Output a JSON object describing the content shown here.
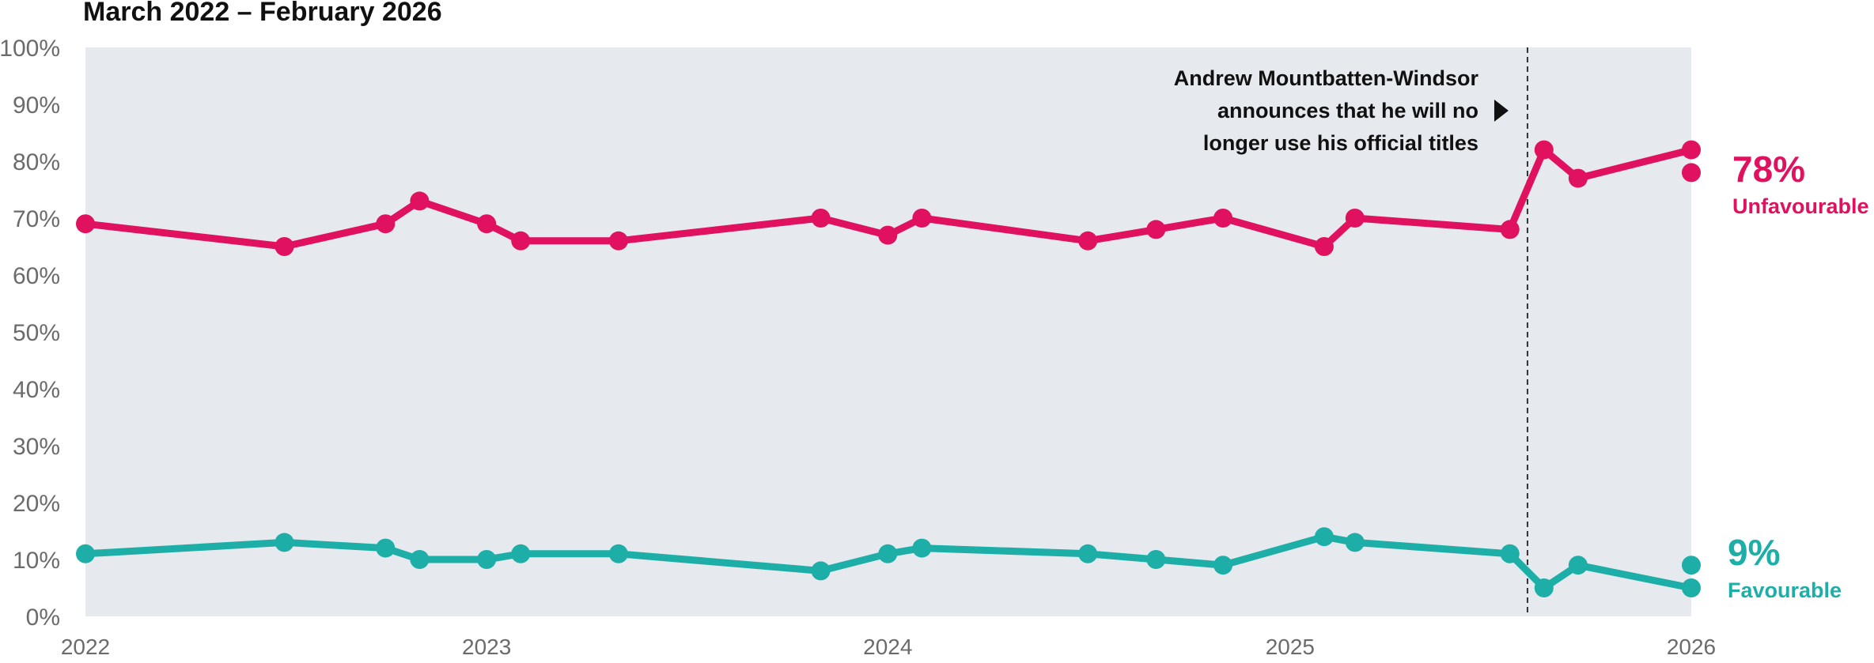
{
  "chart_data": {
    "type": "line",
    "title": "March 2022 – February 2026",
    "xlabel": "",
    "ylabel": "",
    "xlim": [
      "2022-01-01",
      "2026-01-01"
    ],
    "ylim": [
      0,
      100
    ],
    "yticks": [
      "0%",
      "10%",
      "20%",
      "30%",
      "40%",
      "50%",
      "60%",
      "70%",
      "80%",
      "90%",
      "100%"
    ],
    "xticks": [
      {
        "date": "2022-01-01",
        "label": "2022"
      },
      {
        "date": "2023-01-01",
        "label": "2023"
      },
      {
        "date": "2024-01-01",
        "label": "2024"
      },
      {
        "date": "2025-01-01",
        "label": "2025"
      },
      {
        "date": "2026-01-01",
        "label": "2026"
      }
    ],
    "grid": false,
    "series": [
      {
        "name": "Unfavourable",
        "color": "#e0115f",
        "points": [
          {
            "x": "2022-01-01",
            "y": 69
          },
          {
            "x": "2022-07-01",
            "y": 65
          },
          {
            "x": "2022-10-01",
            "y": 69
          },
          {
            "x": "2022-11-01",
            "y": 73
          },
          {
            "x": "2023-01-01",
            "y": 69
          },
          {
            "x": "2023-02-01",
            "y": 66
          },
          {
            "x": "2023-05-01",
            "y": 66
          },
          {
            "x": "2023-11-01",
            "y": 70
          },
          {
            "x": "2024-01-01",
            "y": 67
          },
          {
            "x": "2024-02-01",
            "y": 70
          },
          {
            "x": "2024-07-01",
            "y": 66
          },
          {
            "x": "2024-09-01",
            "y": 68
          },
          {
            "x": "2024-11-01",
            "y": 70
          },
          {
            "x": "2025-02-01",
            "y": 65
          },
          {
            "x": "2025-03-01",
            "y": 70
          },
          {
            "x": "2025-07-20",
            "y": 68
          },
          {
            "x": "2025-08-20",
            "y": 82
          },
          {
            "x": "2025-09-20",
            "y": 77
          },
          {
            "x": "2026-01-01",
            "y": 82
          }
        ],
        "extra_points": [
          {
            "x": "2026-01-01",
            "y": 78
          }
        ],
        "end_value": "78%",
        "end_label": "Unfavourable"
      },
      {
        "name": "Favourable",
        "color": "#1eaea8",
        "points": [
          {
            "x": "2022-01-01",
            "y": 11
          },
          {
            "x": "2022-07-01",
            "y": 13
          },
          {
            "x": "2022-10-01",
            "y": 12
          },
          {
            "x": "2022-11-01",
            "y": 10
          },
          {
            "x": "2023-01-01",
            "y": 10
          },
          {
            "x": "2023-02-01",
            "y": 11
          },
          {
            "x": "2023-05-01",
            "y": 11
          },
          {
            "x": "2023-11-01",
            "y": 8
          },
          {
            "x": "2024-01-01",
            "y": 11
          },
          {
            "x": "2024-02-01",
            "y": 12
          },
          {
            "x": "2024-07-01",
            "y": 11
          },
          {
            "x": "2024-09-01",
            "y": 10
          },
          {
            "x": "2024-11-01",
            "y": 9
          },
          {
            "x": "2025-02-01",
            "y": 14
          },
          {
            "x": "2025-03-01",
            "y": 13
          },
          {
            "x": "2025-07-20",
            "y": 11
          },
          {
            "x": "2025-08-20",
            "y": 5
          },
          {
            "x": "2025-09-20",
            "y": 9
          },
          {
            "x": "2026-01-01",
            "y": 5
          }
        ],
        "extra_points": [
          {
            "x": "2026-01-01",
            "y": 9
          }
        ],
        "end_value": "9%",
        "end_label": "Favourable"
      }
    ],
    "annotations": [
      {
        "x": "2025-08-05",
        "lines": [
          "Andrew Mountbatten-Windsor",
          "announces that he will no",
          "longer use his official titles"
        ]
      }
    ]
  }
}
